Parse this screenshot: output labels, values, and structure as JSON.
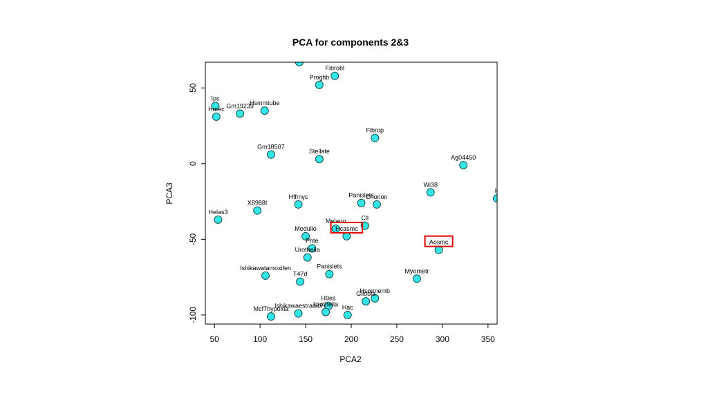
{
  "chart_data": {
    "type": "scatter",
    "title": "PCA for components 2&3",
    "xlabel": "PCA2",
    "ylabel": "PCA3",
    "xlim": [
      40,
      360
    ],
    "ylim": [
      -106,
      67
    ],
    "x_ticks": [
      "50",
      "100",
      "150",
      "200",
      "250",
      "300",
      "350"
    ],
    "y_ticks": [
      "-100",
      "-50",
      "0",
      "50"
    ],
    "point_color": "#33e6e6",
    "highlight_color": "#e60000",
    "points": [
      {
        "label": "",
        "x": 143,
        "y": 67
      },
      {
        "label": "Fibrobl",
        "x": 182,
        "y": 58
      },
      {
        "label": "Progfib",
        "x": 165,
        "y": 52
      },
      {
        "label": "Ips",
        "x": 51,
        "y": 38
      },
      {
        "label": "Hmec",
        "x": 52,
        "y": 31
      },
      {
        "label": "Gm19239",
        "x": 78,
        "y": 33
      },
      {
        "label": "Hsmmtube",
        "x": 105,
        "y": 35
      },
      {
        "label": "Fibrop",
        "x": 226,
        "y": 17
      },
      {
        "label": "Gm18507",
        "x": 112,
        "y": 6
      },
      {
        "label": "Stellate",
        "x": 165,
        "y": 3
      },
      {
        "label": "Ag04450",
        "x": 323,
        "y": -1
      },
      {
        "label": "Wi38",
        "x": 287,
        "y": -19
      },
      {
        "label": "H",
        "x": 360,
        "y": -23
      },
      {
        "label": "Hffmyc",
        "x": 142,
        "y": -27
      },
      {
        "label": "X8988t",
        "x": 97,
        "y": -31
      },
      {
        "label": "Panislets",
        "x": 211,
        "y": -26
      },
      {
        "label": "Chorion",
        "x": 228,
        "y": -27
      },
      {
        "label": "Helas3",
        "x": 54,
        "y": -37
      },
      {
        "label": "Cll",
        "x": 215,
        "y": -41
      },
      {
        "label": "Melano",
        "x": 183,
        "y": -43
      },
      {
        "label": "Hcasmc",
        "x": 195,
        "y": -48,
        "highlight": true
      },
      {
        "label": "Medullo",
        "x": 150,
        "y": -48
      },
      {
        "label": "Phte",
        "x": 157,
        "y": -56
      },
      {
        "label": "Urothelia",
        "x": 152,
        "y": -62
      },
      {
        "label": "Aosmc",
        "x": 296,
        "y": -57,
        "highlight": true
      },
      {
        "label": "Ishikawatamoxifen",
        "x": 106,
        "y": -74
      },
      {
        "label": "Panislets",
        "x": 176,
        "y": -73
      },
      {
        "label": "Myometr",
        "x": 272,
        "y": -76
      },
      {
        "label": "T47d",
        "x": 144,
        "y": -78
      },
      {
        "label": "Hsmmemb",
        "x": 226,
        "y": -89
      },
      {
        "label": "Gliobla",
        "x": 216,
        "y": -91
      },
      {
        "label": "H9es",
        "x": 175,
        "y": -94
      },
      {
        "label": "Urothelia",
        "x": 172,
        "y": -98
      },
      {
        "label": "Ishikawaestradiol",
        "x": 142,
        "y": -99
      },
      {
        "label": "Mcf7hypoxia",
        "x": 112,
        "y": -101
      },
      {
        "label": "Hac",
        "x": 196,
        "y": -100
      }
    ]
  }
}
